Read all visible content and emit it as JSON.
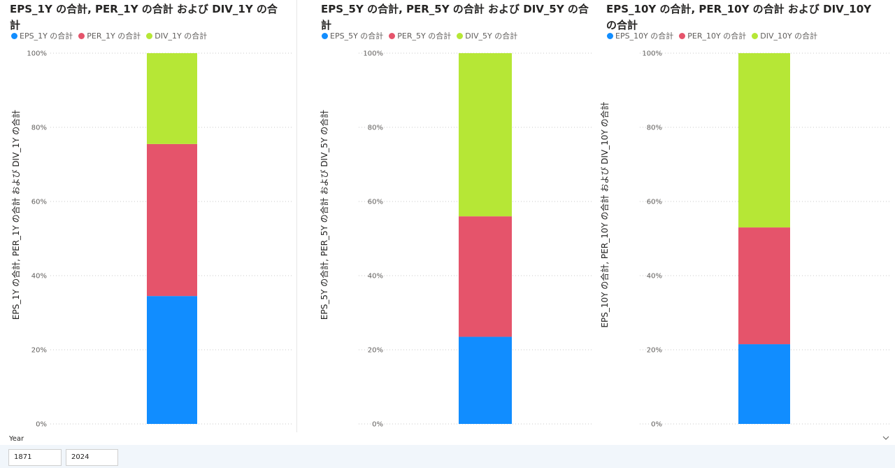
{
  "chart_data": [
    {
      "type": "bar",
      "stacked": "percent",
      "title": "EPS_1Y の合計, PER_1Y の合計 および DIV_1Y の合計",
      "ylabel": "EPS_1Y の合計, PER_1Y の合計 および DIV_1Y の合計",
      "xlabel": "",
      "ylim": [
        0,
        100
      ],
      "yticks": [
        "0%",
        "20%",
        "40%",
        "60%",
        "80%",
        "100%"
      ],
      "grid": true,
      "legend_position": "top-left",
      "categories": [
        ""
      ],
      "series": [
        {
          "name": "EPS_1Y の合計",
          "color": "#118dff",
          "values": [
            34.5
          ]
        },
        {
          "name": "PER_1Y の合計",
          "color": "#e5546b",
          "values": [
            41
          ]
        },
        {
          "name": "DIV_1Y の合計",
          "color": "#b6e736",
          "values": [
            24.5
          ]
        }
      ]
    },
    {
      "type": "bar",
      "stacked": "percent",
      "title": "EPS_5Y の合計, PER_5Y の合計 および DIV_5Y の合計",
      "ylabel": "EPS_5Y の合計, PER_5Y の合計 および DIV_5Y の合計",
      "xlabel": "",
      "ylim": [
        0,
        100
      ],
      "yticks": [
        "0%",
        "20%",
        "40%",
        "60%",
        "80%",
        "100%"
      ],
      "grid": true,
      "legend_position": "top-left",
      "categories": [
        ""
      ],
      "series": [
        {
          "name": "EPS_5Y の合計",
          "color": "#118dff",
          "values": [
            23.5
          ]
        },
        {
          "name": "PER_5Y の合計",
          "color": "#e5546b",
          "values": [
            32.5
          ]
        },
        {
          "name": "DIV_5Y の合計",
          "color": "#b6e736",
          "values": [
            44
          ]
        }
      ]
    },
    {
      "type": "bar",
      "stacked": "percent",
      "title": "EPS_10Y の合計, PER_10Y の合計 および DIV_10Y の合計",
      "ylabel": "EPS_10Y の合計, PER_10Y の合計 および DIV_10Y の合計",
      "xlabel": "",
      "ylim": [
        0,
        100
      ],
      "yticks": [
        "0%",
        "20%",
        "40%",
        "60%",
        "80%",
        "100%"
      ],
      "grid": true,
      "legend_position": "top-left",
      "categories": [
        ""
      ],
      "series": [
        {
          "name": "EPS_10Y の合計",
          "color": "#118dff",
          "values": [
            21.5
          ]
        },
        {
          "name": "PER_10Y の合計",
          "color": "#e5546b",
          "values": [
            31.5
          ]
        },
        {
          "name": "DIV_10Y の合計",
          "color": "#b6e736",
          "values": [
            47
          ]
        }
      ]
    }
  ],
  "slicer": {
    "title": "Year",
    "start": "1871",
    "end": "2024"
  }
}
